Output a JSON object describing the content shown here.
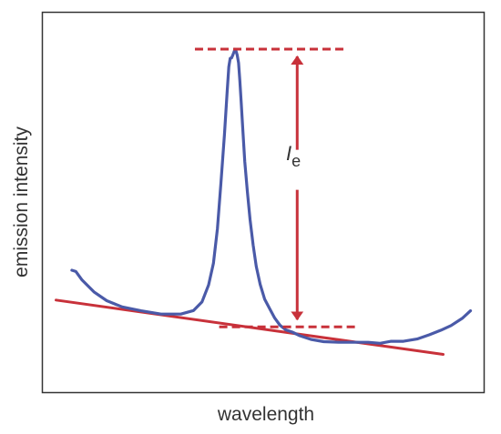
{
  "chart_data": {
    "type": "line",
    "xlabel": "wavelength",
    "ylabel": "emission intensity",
    "xlim": [
      0,
      100
    ],
    "ylim": [
      0,
      100
    ],
    "grid": false,
    "ticks": false,
    "series": [
      {
        "role": "emission-spectrum",
        "color": "#4a5aa8",
        "x": [
          6.6,
          7.5,
          8.9,
          11.6,
          14.5,
          18.0,
          22.3,
          26.8,
          31.3,
          34.2,
          36.1,
          37.6,
          38.7,
          39.6,
          40.4,
          41.2,
          41.8,
          42.2,
          42.5,
          42.8,
          43.1,
          43.4,
          43.6,
          43.8,
          44.1,
          44.4,
          44.7,
          45.0,
          45.4,
          45.8,
          46.4,
          47.0,
          47.7,
          48.4,
          49.3,
          50.3,
          51.5,
          52.6,
          53.8,
          55.1,
          56.6,
          58.3,
          60.8,
          63.7,
          67.1,
          70.4,
          73.8,
          76.5,
          79.0,
          81.8,
          84.9,
          87.7,
          90.3,
          92.6,
          95.2,
          97.0
        ],
        "y": [
          32.5,
          32.1,
          29.5,
          25.9,
          23.2,
          21.3,
          20.1,
          19.1,
          19.1,
          20.2,
          22.8,
          28.0,
          34.6,
          45.2,
          59.0,
          73.9,
          86.7,
          94.6,
          97.2,
          97.3,
          98.2,
          99.3,
          100.0,
          99.5,
          98.2,
          95.8,
          90.4,
          83.7,
          74.8,
          65.7,
          56.4,
          48.0,
          40.2,
          33.7,
          28.2,
          23.7,
          20.6,
          17.9,
          15.7,
          14.3,
          13.6,
          12.5,
          11.4,
          10.7,
          10.5,
          10.5,
          10.5,
          10.2,
          10.8,
          10.8,
          11.5,
          12.8,
          14.2,
          15.6,
          17.9,
          20.1
        ]
      },
      {
        "role": "baseline",
        "color": "#c8313a",
        "x": [
          3.0,
          90.8
        ],
        "y": [
          23.4,
          6.8
        ]
      }
    ],
    "annotations": {
      "label_main": "I",
      "label_sub": "e",
      "peak_level": 100.0,
      "baseline_level": 15.2,
      "peak_dash_x": [
        34.5,
        68.2
      ],
      "base_dash_x": [
        40.0,
        71.5
      ],
      "arrow_x": 57.7,
      "color": "#c8313a"
    }
  }
}
